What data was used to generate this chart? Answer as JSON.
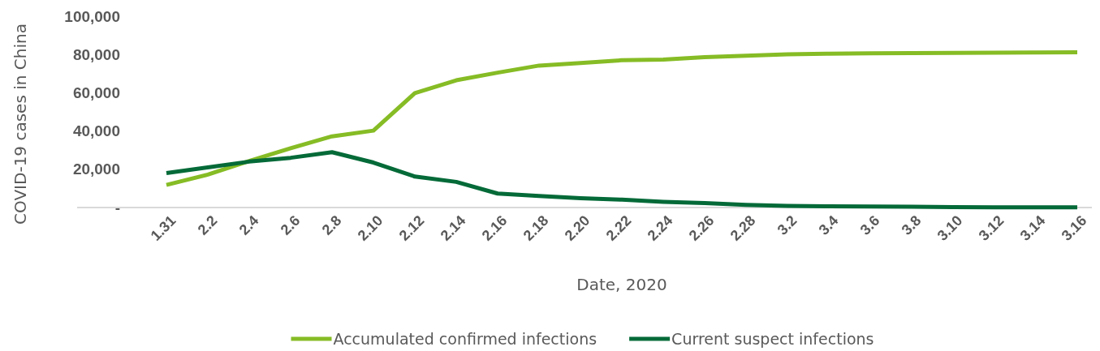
{
  "chart_data": {
    "type": "line",
    "xlabel": "Date, 2020",
    "ylabel": "COVID-19 cases in China",
    "categories": [
      "1.31",
      "2.2",
      "2.4",
      "2.6",
      "2.8",
      "2.10",
      "2.12",
      "2.14",
      "2.16",
      "2.18",
      "2.20",
      "2.22",
      "2.24",
      "2.26",
      "2.28",
      "3.2",
      "3.4",
      "3.6",
      "3.8",
      "3.10",
      "3.12",
      "3.14",
      "3.16"
    ],
    "series": [
      {
        "name": "Accumulated confirmed infections",
        "color": "#86bc25",
        "values": [
          11800,
          17200,
          24300,
          31000,
          37200,
          40200,
          59800,
          66500,
          70500,
          74200,
          75500,
          77000,
          77300,
          78600,
          79300,
          80100,
          80400,
          80600,
          80700,
          80800,
          80900,
          81000,
          81100
        ]
      },
      {
        "name": "Current suspect infections",
        "color": "#046a38",
        "values": [
          18000,
          21000,
          24000,
          26000,
          28900,
          23500,
          16200,
          13400,
          7300,
          6000,
          4900,
          4100,
          3000,
          2300,
          1400,
          850,
          600,
          500,
          400,
          200,
          150,
          130,
          130
        ]
      }
    ],
    "ylim": [
      0,
      100000
    ],
    "yticks": [
      {
        "value": 0,
        "label": "-"
      },
      {
        "value": 20000,
        "label": "20,000"
      },
      {
        "value": 40000,
        "label": "40,000"
      },
      {
        "value": 60000,
        "label": "60,000"
      },
      {
        "value": 80000,
        "label": "80,000"
      },
      {
        "value": 100000,
        "label": "100,000"
      }
    ],
    "grid": false,
    "legend": "bottom",
    "marker": "none",
    "line_style": "solid"
  }
}
